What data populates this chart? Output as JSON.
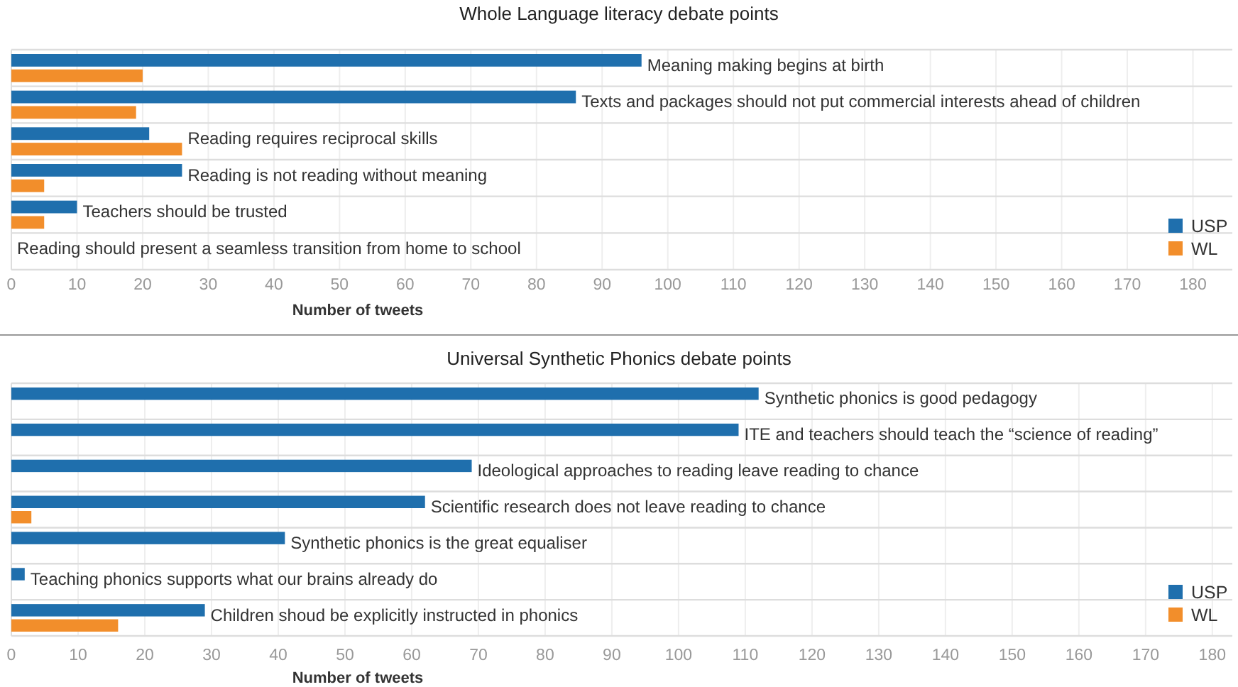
{
  "chart_data": [
    {
      "type": "bar",
      "orientation": "horizontal",
      "title": "Whole Language literacy debate points",
      "xlabel": "Number of tweets",
      "categories": [
        "Meaning making begins at birth",
        "Texts and packages should not put commercial interests ahead of children",
        "Reading requires reciprocal skills",
        "Reading is not reading without meaning",
        "Teachers should be trusted",
        "Reading should present a seamless transition from home to school"
      ],
      "series": [
        {
          "name": "USP",
          "color": "#1f6fad",
          "values": [
            96,
            86,
            21,
            26,
            10,
            null
          ]
        },
        {
          "name": "WL",
          "color": "#f28e2b",
          "values": [
            20,
            19,
            26,
            5,
            5,
            null
          ]
        }
      ],
      "xlim": [
        0,
        186
      ],
      "xticks": [
        0,
        10,
        20,
        30,
        40,
        50,
        60,
        70,
        80,
        90,
        100,
        110,
        120,
        130,
        140,
        150,
        160,
        170,
        180
      ],
      "grid": true,
      "legend": "bottom right"
    },
    {
      "type": "bar",
      "orientation": "horizontal",
      "title": "Universal Synthetic Phonics debate points",
      "xlabel": "Number of tweets",
      "categories": [
        "Synthetic phonics is good pedagogy",
        "ITE and teachers should teach the “science of reading”",
        "Ideological approaches to reading leave reading to chance",
        "Scientific research does not leave reading to chance",
        "Synthetic phonics is the great equaliser",
        "Teaching phonics supports what our brains already do",
        "Children shoud be explicitly instructed in phonics"
      ],
      "series": [
        {
          "name": "USP",
          "color": "#1f6fad",
          "values": [
            112,
            109,
            69,
            62,
            41,
            2,
            29
          ]
        },
        {
          "name": "WL",
          "color": "#f28e2b",
          "values": [
            null,
            null,
            null,
            3,
            null,
            null,
            16
          ]
        }
      ],
      "xlim": [
        0,
        183
      ],
      "xticks": [
        0,
        10,
        20,
        30,
        40,
        50,
        60,
        70,
        80,
        90,
        100,
        110,
        120,
        130,
        140,
        150,
        160,
        170,
        180
      ],
      "grid": true,
      "legend": "bottom right"
    }
  ]
}
